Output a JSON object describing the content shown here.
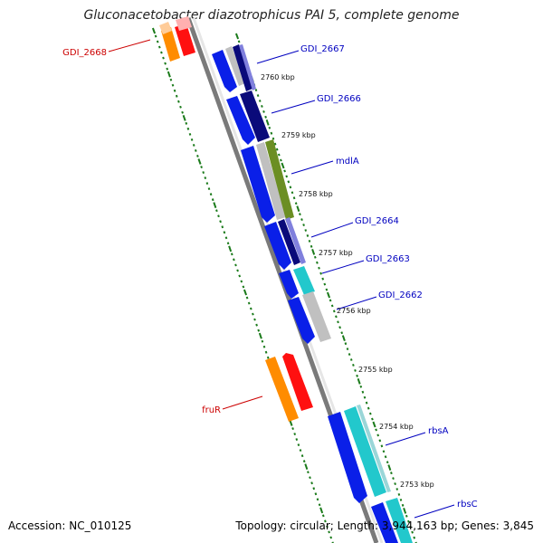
{
  "title": "Gluconacetobacter diazotrophicus PAI 5, complete genome",
  "accession": "Accession: NC_010125",
  "topology": "Topology: circular; Length: 3,944,163 bp; Genes: 3,845",
  "kbp_ticks": [
    "2760 kbp",
    "2759 kbp",
    "2758 kbp",
    "2757 kbp",
    "2756 kbp",
    "2755 kbp",
    "2754 kbp",
    "2753 kbp"
  ],
  "genes": {
    "gdi_2668": "GDI_2668",
    "gdi_2667": "GDI_2667",
    "gdi_2666": "GDI_2666",
    "mdla": "mdlA",
    "gdi_2664": "GDI_2664",
    "gdi_2663": "GDI_2663",
    "gdi_2662": "GDI_2662",
    "frur": "fruR",
    "rbsa": "rbsA",
    "rbsc": "rbsC"
  },
  "colors": {
    "forward_label": "#0000c0",
    "reverse_label": "#cc0000",
    "cds_blue": "#0a1fe8",
    "dark_navy": "#0a0a7a",
    "olive": "#6b8e23",
    "cyan": "#22c8cc",
    "orange": "#ff8c00",
    "red": "#ff1010",
    "gray": "#c0c0c0",
    "backbone": "#7a7a7a",
    "tick_green": "#1a7a1a"
  }
}
